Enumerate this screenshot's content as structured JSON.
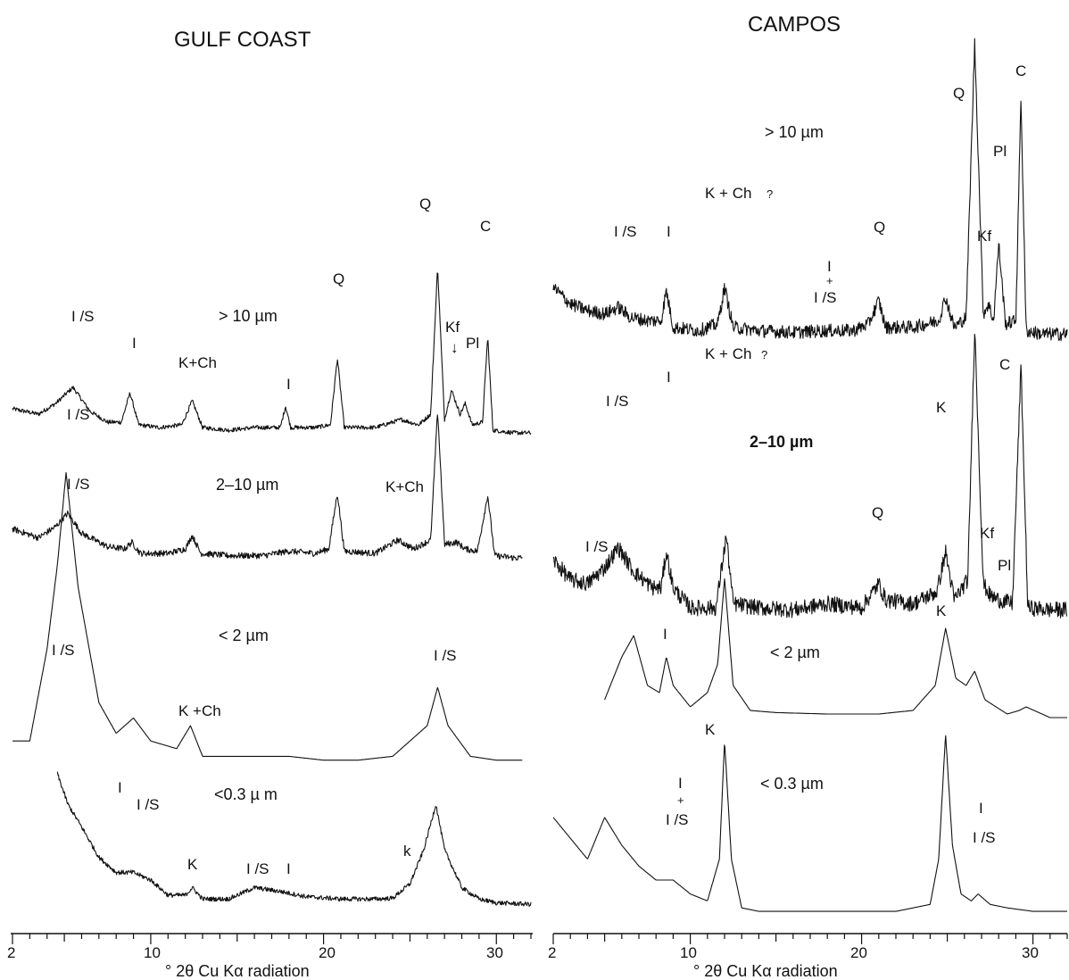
{
  "chart_data": [
    {
      "type": "line",
      "title": "GULF COAST",
      "xlabel": "°2θ Cu Kα radiation",
      "xlim": [
        2,
        32
      ],
      "x_ticks": [
        2,
        10,
        20,
        30
      ],
      "series": [
        {
          "name": "> 10 µm",
          "baseline": 0.8,
          "x": [
            2,
            3.5,
            4.5,
            5.5,
            6.5,
            7.5,
            8.3,
            8.8,
            9.3,
            10.5,
            11.8,
            12.4,
            13,
            14.5,
            16,
            17.5,
            17.8,
            18.1,
            19.5,
            20.4,
            20.8,
            21.2,
            23,
            24.5,
            25.5,
            26.2,
            26.6,
            27,
            27.4,
            27.9,
            28.2,
            28.6,
            29.2,
            29.5,
            29.8,
            31,
            32
          ],
          "y": [
            10,
            8,
            12,
            18,
            9,
            5,
            5,
            16,
            4,
            3,
            4,
            13,
            3,
            2,
            3,
            3,
            11,
            3,
            3,
            4,
            29,
            3,
            3,
            6,
            4,
            8,
            63,
            6,
            17,
            8,
            12,
            4,
            5,
            37,
            2,
            1,
            1
          ]
        },
        {
          "name": "2–10 µm",
          "baseline": 1.4,
          "x": [
            2,
            3.5,
            4.5,
            5.2,
            6,
            7.5,
            8.5,
            8.9,
            9.4,
            11,
            12,
            12.4,
            12.9,
            14.5,
            16.5,
            18,
            19.5,
            20.3,
            20.8,
            21.2,
            23,
            24.3,
            25.2,
            26.2,
            26.6,
            27,
            27.7,
            28.2,
            28.9,
            29.5,
            29.9,
            31,
            32
          ],
          "y": [
            15,
            11,
            16,
            22,
            13,
            7,
            6,
            9,
            4,
            4,
            6,
            12,
            4,
            3,
            3,
            5,
            4,
            6,
            31,
            5,
            4,
            10,
            6,
            10,
            68,
            8,
            9,
            6,
            5,
            30,
            3,
            2,
            2
          ]
        },
        {
          "name": "< 2 µm",
          "baseline": 0,
          "x": [
            2,
            3,
            4,
            4.6,
            5.1,
            5.8,
            7,
            8,
            9,
            10,
            11.5,
            12.3,
            13,
            14.5,
            16,
            18,
            20,
            22,
            24,
            25,
            26,
            26.6,
            27.2,
            28.5,
            30,
            32
          ],
          "y": [
            3,
            3,
            15,
            26,
            38,
            23,
            8,
            4,
            6,
            3,
            2,
            5,
            1,
            1,
            1,
            1,
            0.5,
            0.5,
            1,
            3,
            5,
            10,
            5,
            1,
            0.5,
            0.5
          ]
        },
        {
          "name": "< 0.3 µm",
          "baseline": 0.3,
          "x": [
            4.6,
            5.2,
            6,
            7,
            8,
            9,
            10,
            11,
            12,
            12.4,
            13,
            14.5,
            16,
            17.5,
            19,
            21,
            23,
            24,
            25,
            25.8,
            26.5,
            27,
            28,
            29,
            30,
            32
          ],
          "y": [
            18,
            14,
            11,
            7,
            5,
            5,
            4,
            2,
            2,
            3,
            1.5,
            1.5,
            3,
            2.5,
            1.8,
            1.5,
            1.5,
            1.6,
            3.5,
            8,
            14,
            8,
            3,
            1.5,
            1,
            0.8
          ]
        }
      ],
      "annotations": [
        "I/S",
        "I",
        "K+Ch",
        "I",
        "Q",
        "Q",
        "Kf",
        "Pl",
        "C",
        "I/S",
        "K+Ch",
        "I/S",
        "I/S",
        "I/S",
        "K +Ch",
        "I",
        "I/S",
        "K",
        "I/S",
        "I",
        "k"
      ]
    },
    {
      "type": "line",
      "title": "CAMPOS",
      "xlabel": "°2θ Cu Kα radiation",
      "xlim": [
        2,
        32
      ],
      "x_ticks": [
        2,
        10,
        20,
        30
      ],
      "series": [
        {
          "name": "> 10 µm",
          "baseline": 2,
          "x": [
            2,
            3,
            4,
            5,
            5.8,
            6.5,
            7.5,
            8.3,
            8.6,
            9,
            10.5,
            11.6,
            12,
            12.5,
            14,
            16,
            18,
            19.5,
            20.4,
            21,
            21.4,
            23,
            24.5,
            24.9,
            25.4,
            26.1,
            26.6,
            27.1,
            27.4,
            27.7,
            28,
            28.4,
            29,
            29.3,
            29.6,
            30.5,
            32
          ],
          "y": [
            15,
            10,
            8,
            7,
            9,
            6,
            5,
            5,
            14,
            3,
            2,
            4,
            15,
            3,
            2,
            1.5,
            2,
            2,
            4,
            11,
            3,
            3,
            5,
            12,
            3,
            6,
            88,
            7,
            10,
            5,
            28,
            4,
            5,
            72,
            2,
            1,
            1
          ]
        },
        {
          "name": "2–10 µm",
          "baseline": 2,
          "x": [
            2,
            3,
            4,
            5,
            5.8,
            6.7,
            7.8,
            8.3,
            8.6,
            9,
            10,
            11.5,
            11.9,
            12.1,
            12.5,
            14,
            16,
            18,
            20,
            21,
            21.4,
            23,
            24.4,
            24.9,
            25.4,
            26.2,
            26.6,
            27.1,
            27.5,
            28,
            28.8,
            29.3,
            29.7,
            31,
            32
          ],
          "y": [
            14,
            9,
            8,
            12,
            17,
            11,
            7,
            7,
            16,
            7,
            2,
            2,
            14,
            20,
            3,
            2,
            1.5,
            3,
            2,
            8,
            4,
            3,
            6,
            16,
            4,
            9,
            72,
            8,
            5,
            4,
            3,
            62,
            2,
            1.5,
            1.5
          ]
        },
        {
          "name": "< 2 µm",
          "baseline": 0,
          "x": [
            5,
            5.5,
            6,
            6.7,
            7.5,
            8.2,
            8.6,
            9,
            10,
            11,
            11.6,
            12,
            12.5,
            13.5,
            15,
            18,
            21,
            23,
            24.3,
            24.9,
            25.5,
            26.1,
            26.6,
            27.2,
            28.5,
            29.2,
            29.6,
            31,
            32
          ],
          "y": [
            3,
            6,
            9,
            12,
            5,
            4,
            9,
            5,
            2,
            4,
            8,
            20,
            5,
            1.5,
            1.2,
            1,
            1,
            1.5,
            5,
            13,
            6,
            5,
            7,
            3,
            1,
            1.5,
            2,
            0.5,
            0.5
          ]
        },
        {
          "name": "< 0.3 µm",
          "baseline": 0,
          "x": [
            2,
            3,
            4,
            5,
            6,
            7,
            8,
            9,
            10,
            11,
            11.7,
            12,
            12.4,
            13,
            14,
            16,
            18,
            20,
            22,
            24,
            24.5,
            24.9,
            25.3,
            25.8,
            26.4,
            26.8,
            27.5,
            28.5,
            30,
            32
          ],
          "y": [
            14,
            11,
            8,
            14,
            10,
            7,
            5,
            5,
            3,
            2,
            8,
            25,
            8,
            1,
            0.5,
            0.5,
            0.5,
            0.5,
            0.5,
            1.5,
            8,
            26,
            10,
            3,
            2,
            3,
            1.5,
            1,
            0.5,
            0.5
          ]
        }
      ],
      "annotations": [
        "> 10 µm",
        "Q",
        "C",
        "Pl",
        "I/S",
        "I",
        "K + Ch ?",
        "Q",
        "I + I/S",
        "Kf",
        "K + Ch ?",
        "I",
        "C",
        "I/S",
        "K",
        "2–10 µm",
        "Q",
        "I/S",
        "Kf",
        "Pl",
        "I",
        "K",
        "< 2 µm",
        "K",
        "< 0.3 µm",
        "I + I/S",
        "I I/S"
      ]
    }
  ],
  "labels": {
    "gulf": {
      "title": "GULF COAST",
      "size_gt10": "> 10 µm",
      "size_2_10": "2–10 µm",
      "size_lt2": "< 2 µm",
      "size_lt03": "<0.3 µ m",
      "peak_is_1": "I /S",
      "peak_i_1": "I",
      "peak_kch_1": "K+Ch",
      "peak_i_2": "I",
      "peak_q_1": "Q",
      "peak_q_2": "Q",
      "peak_kf": "Kf",
      "peak_pl": "Pl",
      "peak_c": "C",
      "peak_is_2": "I /S",
      "peak_kch_2": "K+Ch",
      "peak_is_3": "I /S",
      "peak_is_4": "I /S",
      "peak_is_5": "I /S",
      "peak_kch_3": "K +Ch",
      "peak_i_3": "I",
      "peak_is_6": "I /S",
      "peak_k_1": "K",
      "peak_is_7": "I /S",
      "peak_i_4": "I",
      "peak_k_2": "k",
      "ticks": [
        "2",
        "10",
        "20",
        "30"
      ],
      "xlabel": "° 2θ Cu Kα radiation"
    },
    "campos": {
      "title": "CAMPOS",
      "size_gt10": "> 10 µm",
      "size_2_10": "2–10 µm",
      "size_lt2": "< 2 µm",
      "size_lt03": "< 0.3 µm",
      "peak_q_1": "Q",
      "peak_c_1": "C",
      "peak_pl_1": "Pl",
      "peak_is_1": "I /S",
      "peak_i_1": "I",
      "peak_kch_1": "K + Ch",
      "peak_kch_1_q": "?",
      "peak_q_2": "Q",
      "peak_i_plus_1": "I",
      "peak_plus_1": "+",
      "peak_is_plus_1": "I /S",
      "peak_kf_1": "Kf",
      "peak_kch_2": "K + Ch",
      "peak_kch_2_q": "?",
      "peak_i_2": "I",
      "peak_c_2": "C",
      "peak_is_2": "I /S",
      "peak_k_1": "K",
      "peak_q_3": "Q",
      "peak_is_3": "I /S",
      "peak_kf_2": "Kf",
      "peak_pl_2": "Pl",
      "peak_i_3": "I",
      "peak_k_2": "K",
      "peak_k_3": "K",
      "peak_i_plus_2": "I",
      "peak_plus_2": "+",
      "peak_is_plus_2": "I /S",
      "peak_i_4": "I",
      "peak_is_4": "I /S",
      "ticks": [
        "2",
        "10",
        "20",
        "30"
      ],
      "xlabel": "° 2θ Cu Kα radiation"
    }
  }
}
